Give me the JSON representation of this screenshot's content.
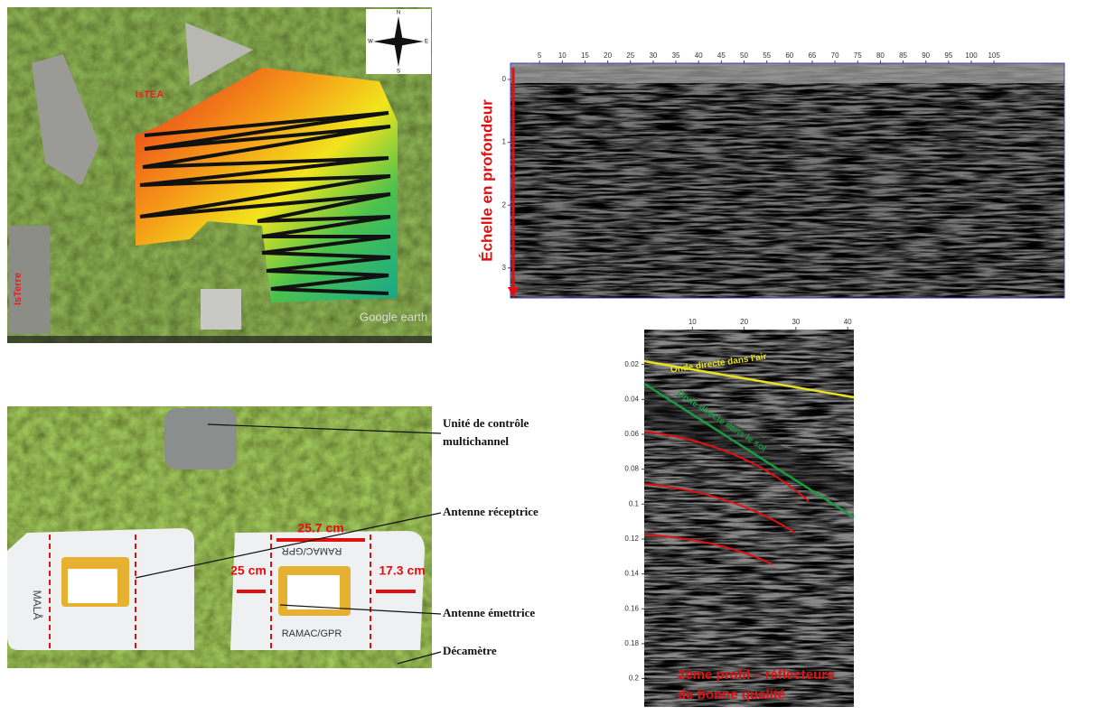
{
  "map": {
    "labels": [
      "IsTEA",
      "IsTerre"
    ],
    "watermark": "Google earth",
    "compass": [
      "N",
      "E",
      "S",
      "W"
    ]
  },
  "profile_1": {
    "axis_label": "Échelle en profondeur",
    "xticks": [
      5,
      10,
      15,
      20,
      25,
      30,
      35,
      40,
      45,
      50,
      55,
      60,
      65,
      70,
      75,
      80,
      85,
      90,
      95,
      100,
      105
    ],
    "yticks": [
      0,
      1,
      2,
      3
    ]
  },
  "setup": {
    "callouts": [
      "Unité de contrôle",
      "multichannel",
      "Antenne réceptrice",
      "Antenne émettrice",
      "Décamètre"
    ],
    "dimensions": [
      "25.7 cm",
      "25 cm",
      "17.3 cm"
    ],
    "brand": "MALÅ",
    "model": "RAMAC/GPR"
  },
  "profile_2": {
    "xticks": [
      10,
      20,
      30,
      40
    ],
    "yticks": [
      0.02,
      0.04,
      0.06,
      0.08,
      0.1,
      0.12,
      0.14,
      0.16,
      0.18,
      0.2
    ],
    "annotations": [
      "Onde directe dans l'air",
      "Onde directe dans le sol"
    ],
    "caption": [
      "2ème profil – réflecteurs",
      "de bonne qualité"
    ]
  }
}
